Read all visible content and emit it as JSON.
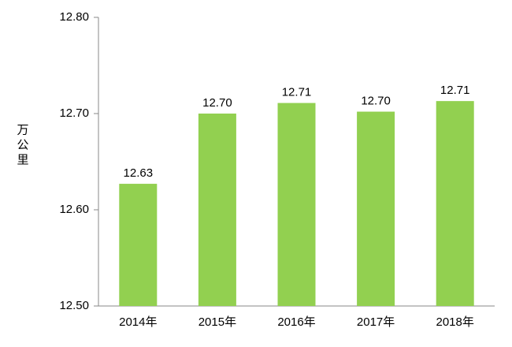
{
  "chart_data": {
    "type": "bar",
    "y_label": "万公里",
    "categories": [
      "2014年",
      "2015年",
      "2016年",
      "2017年",
      "2018年"
    ],
    "values": [
      12.627,
      12.7,
      12.711,
      12.702,
      12.713
    ],
    "value_labels": [
      "12.63",
      "12.70",
      "12.71",
      "12.70",
      "12.71"
    ],
    "color": "#92d050",
    "ylim": [
      12.5,
      12.8
    ],
    "yticks": [
      {
        "value": 12.5,
        "label": "12.50"
      },
      {
        "value": 12.6,
        "label": "12.60"
      },
      {
        "value": 12.7,
        "label": "12.70"
      },
      {
        "value": 12.8,
        "label": "12.80"
      }
    ],
    "grid": false
  }
}
